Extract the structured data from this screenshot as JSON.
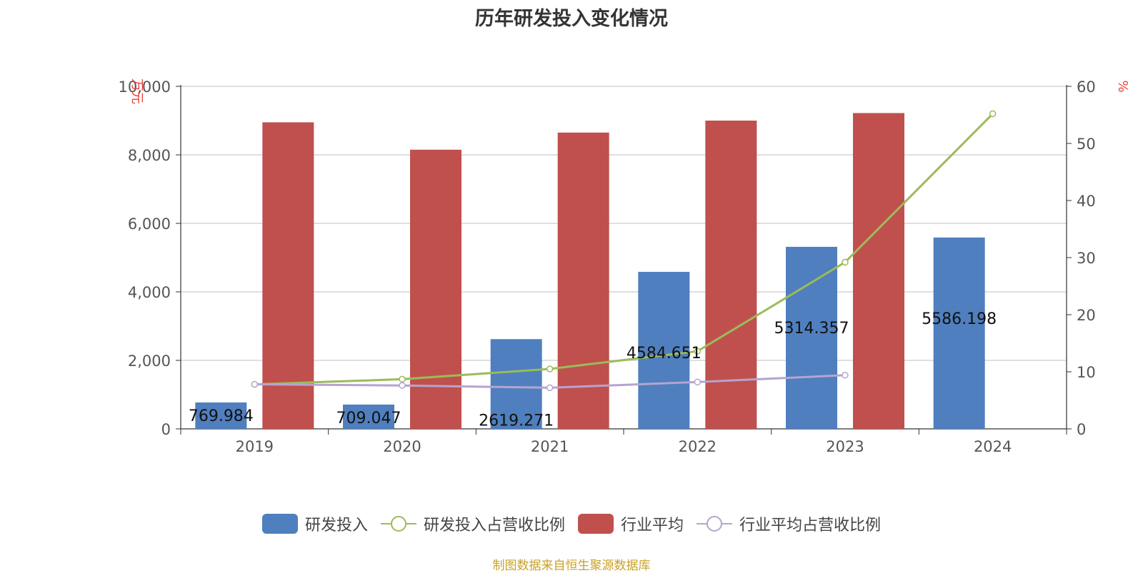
{
  "chart_data": {
    "type": "bar",
    "title": "历年研发投入变化情况",
    "categories": [
      "2019",
      "2020",
      "2021",
      "2022",
      "2023",
      "2024"
    ],
    "y_left": {
      "unit": "万元",
      "ylim": [
        0,
        10000
      ],
      "ticks": [
        "0",
        "2,000",
        "4,000",
        "6,000",
        "8,000",
        "10,000"
      ]
    },
    "y_right": {
      "unit": "%",
      "ylim": [
        0,
        60
      ],
      "ticks": [
        "0",
        "10",
        "20",
        "30",
        "40",
        "50",
        "60"
      ]
    },
    "grid": true,
    "legend_position": "bottom",
    "series": [
      {
        "name": "研发投入",
        "kind": "bar",
        "axis": "left",
        "color": "#4f7fbe",
        "values": [
          769.984,
          709.047,
          2619.271,
          4584.651,
          5314.357,
          5586.198
        ],
        "labels": [
          "769.984",
          "709.047",
          "2619.271",
          "4584.651",
          "5314.357",
          "5586.198"
        ]
      },
      {
        "name": "研发投入占营收比例",
        "kind": "line",
        "axis": "right",
        "color": "#9bbb59",
        "values": [
          7.8,
          8.7,
          10.5,
          13.6,
          29.2,
          55.2
        ]
      },
      {
        "name": "行业平均",
        "kind": "bar",
        "axis": "left",
        "color": "#c0504d",
        "values": [
          8950,
          8150,
          8650,
          9000,
          9220,
          null
        ]
      },
      {
        "name": "行业平均占营收比例",
        "kind": "line",
        "axis": "right",
        "color": "#b5a4cf",
        "values": [
          7.8,
          7.6,
          7.2,
          8.2,
          9.4,
          null
        ]
      }
    ]
  },
  "source": "制图数据来自恒生聚源数据库"
}
